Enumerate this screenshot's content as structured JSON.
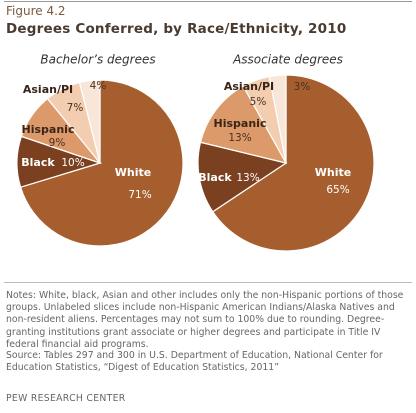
{
  "figure": "Figure 4.2",
  "title": "Degrees Conferred, by Race/Ethnicity, 2010",
  "chart_data": [
    {
      "type": "pie",
      "title": "Bachelor’s degrees",
      "categories": [
        "White",
        "Black",
        "Hispanic",
        "Asian/PI",
        null
      ],
      "values": [
        71,
        10,
        9,
        7,
        4
      ],
      "value_labels": [
        "71%",
        "10%",
        "9%",
        "7%",
        "4%"
      ],
      "colors": [
        "#a65e2e",
        "#7a4020",
        "#dc9a6a",
        "#f2cdb0",
        "#f8e6d8"
      ]
    },
    {
      "type": "pie",
      "title": "Associate degrees",
      "categories": [
        "White",
        "Black",
        "Hispanic",
        "Asian/PI",
        null
      ],
      "values": [
        65,
        13,
        13,
        5,
        3
      ],
      "value_labels": [
        "65%",
        "13%",
        "13%",
        "5%",
        "3%"
      ],
      "colors": [
        "#a65e2e",
        "#7a4020",
        "#dc9a6a",
        "#f2cdb0",
        "#f8e6d8"
      ]
    }
  ],
  "notes": "Notes: White, black, Asian and other includes only the non-Hispanic portions of those groups. Unlabeled slices include non-Hispanic American Indians/Alaska Natives and non-resident aliens. Percentages may not sum to 100% due to rounding. Degree-granting institutions grant associate or higher degrees and participate in Title IV federal financial aid programs.",
  "source": "Source: Tables 297 and 300 in U.S. Department of Education, National Center for Education Statistics, “Digest of Education Statistics, 2011”",
  "credit": "PEW RESEARCH CENTER"
}
